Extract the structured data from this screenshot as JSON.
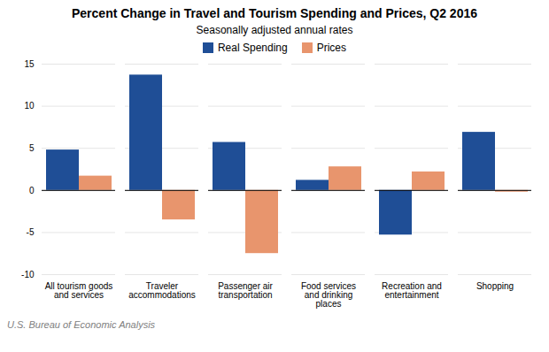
{
  "chart_data": {
    "type": "bar",
    "title": "Percent Change in Travel and Tourism Spending and Prices, Q2 2016",
    "subtitle": "Seasonally adjusted annual rates",
    "caption": "U.S. Bureau of Economic Analysis",
    "categories": [
      "All tourism goods\nand services",
      "Traveler\naccommodations",
      "Passenger air\ntransportation",
      "Food services\nand drinking\nplaces",
      "Recreation and\nentertainment",
      "Shopping"
    ],
    "series": [
      {
        "name": "Real Spending",
        "color": "#1F4E96",
        "values": [
          4.8,
          13.7,
          5.7,
          1.2,
          -5.3,
          6.9
        ]
      },
      {
        "name": "Prices",
        "color": "#E8956D",
        "values": [
          1.7,
          -3.5,
          -7.5,
          2.8,
          2.2,
          -0.2
        ]
      }
    ],
    "ylim": [
      -10,
      15
    ],
    "yticks": [
      -10,
      -5,
      0,
      5,
      10,
      15
    ],
    "grid": true,
    "legend": "top"
  }
}
